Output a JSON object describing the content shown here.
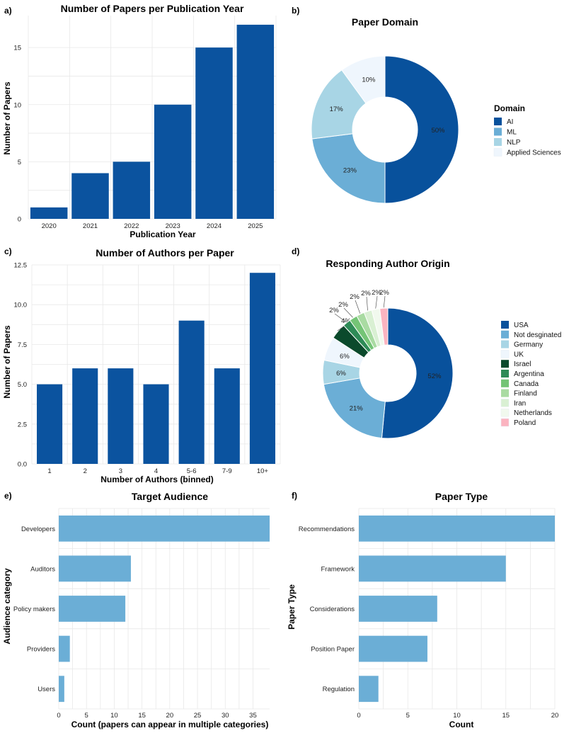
{
  "colors": {
    "bar_dark": "#0b539f",
    "bar_light": "#6baed6",
    "grid": "#e8e8e8"
  },
  "chart_data": [
    {
      "id": "a",
      "letter": "a)",
      "type": "bar",
      "title": "Number of Papers per Publication Year",
      "xlabel": "Publication Year",
      "ylabel": "Number of Papers",
      "categories": [
        "2020",
        "2021",
        "2022",
        "2023",
        "2024",
        "2025"
      ],
      "values": [
        1,
        4,
        5,
        10,
        15,
        17
      ],
      "ylim": [
        0,
        17.8
      ],
      "yticks": [
        0,
        5,
        10,
        15
      ],
      "ytick_labels": [
        "0",
        "5",
        "10",
        "15"
      ],
      "grid": true
    },
    {
      "id": "b",
      "letter": "b)",
      "type": "pie",
      "title": "Paper Domain",
      "legend_title": "Domain",
      "legend_position": "right",
      "labels": [
        "AI",
        "ML",
        "NLP",
        "Applied Sciences"
      ],
      "values": [
        50,
        23,
        17,
        10
      ],
      "value_labels": [
        "50%",
        "23%",
        "17%",
        "10%"
      ],
      "colors": [
        "#08519c",
        "#6baed6",
        "#a8d5e5",
        "#eff6fd"
      ]
    },
    {
      "id": "c",
      "letter": "c)",
      "type": "bar",
      "title": "Number of Authors per Paper",
      "xlabel": "Number of Authors (binned)",
      "ylabel": "Number of Papers",
      "categories": [
        "1",
        "2",
        "3",
        "4",
        "5-6",
        "7-9",
        "10+"
      ],
      "values": [
        5,
        6,
        6,
        5,
        9,
        6,
        12
      ],
      "ylim": [
        0,
        12.5
      ],
      "yticks": [
        0,
        2.5,
        5,
        7.5,
        10,
        12.5
      ],
      "ytick_labels": [
        "0.0",
        "2.5",
        "5.0",
        "7.5",
        "10.0",
        "12.5"
      ],
      "grid": true
    },
    {
      "id": "d",
      "letter": "d)",
      "type": "pie",
      "title": "Responding Author Origin",
      "legend_position": "right",
      "labels": [
        "USA",
        "Not desginated",
        "Germany",
        "UK",
        "Israel",
        "Argentina",
        "Canada",
        "Finland",
        "Iran",
        "Netherlands",
        "Poland"
      ],
      "values": [
        52,
        21,
        6,
        6,
        4,
        2,
        2,
        2,
        2,
        2,
        2
      ],
      "value_labels": [
        "52%",
        "21%",
        "6%",
        "6%",
        "4%",
        "2%",
        "2%",
        "2%",
        "2%",
        "2%",
        "2%"
      ],
      "colors": [
        "#08519c",
        "#6baed6",
        "#a8d5e5",
        "#eff6fd",
        "#0b4a2c",
        "#2e8b57",
        "#74c476",
        "#a9dba2",
        "#d9f0d3",
        "#f1f9ee",
        "#fbb4c0"
      ]
    },
    {
      "id": "e",
      "letter": "e)",
      "type": "bar",
      "orientation": "horizontal",
      "title": "Target Audience",
      "xlabel": "Count (papers can appear in multiple categories)",
      "ylabel": "Audience category",
      "categories": [
        "Developers",
        "Auditors",
        "Policy makers",
        "Providers",
        "Users"
      ],
      "values": [
        38,
        13,
        12,
        2,
        1
      ],
      "xlim": [
        0,
        38
      ],
      "xticks": [
        0,
        5,
        10,
        15,
        20,
        25,
        30,
        35
      ],
      "xtick_labels": [
        "0",
        "5",
        "10",
        "15",
        "20",
        "25",
        "30",
        "35"
      ],
      "grid": true
    },
    {
      "id": "f",
      "letter": "f)",
      "type": "bar",
      "orientation": "horizontal",
      "title": "Paper Type",
      "xlabel": "Count",
      "ylabel": "Paper Type",
      "categories": [
        "Recommendations",
        "Framework",
        "Considerations",
        "Position Paper",
        "Regulation"
      ],
      "values": [
        20,
        15,
        8,
        7,
        2
      ],
      "xlim": [
        0,
        20
      ],
      "xticks": [
        0,
        5,
        10,
        15,
        20
      ],
      "xtick_labels": [
        "0",
        "5",
        "10",
        "15",
        "20"
      ],
      "grid": true
    }
  ]
}
